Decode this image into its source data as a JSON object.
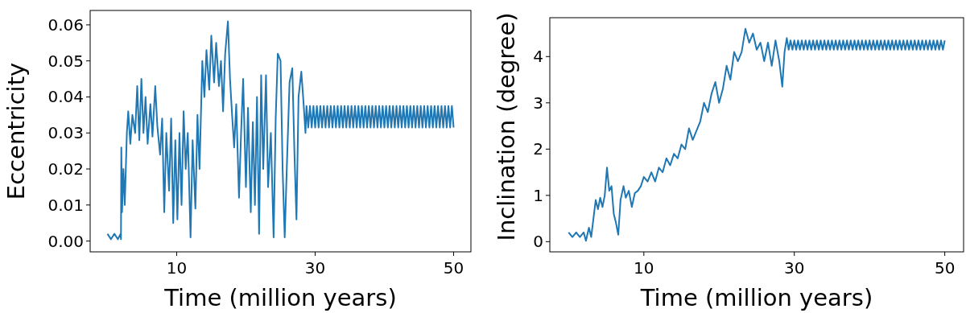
{
  "chart_data": [
    {
      "type": "line",
      "xlabel": "Time (million years)",
      "ylabel": "Eccentricity",
      "xlim": [
        -2.5,
        52.5
      ],
      "xticks": [
        10,
        30,
        50
      ],
      "ylim": [
        -0.003,
        0.064
      ],
      "yticks": [
        {
          "value": 0,
          "label": "0.00"
        },
        {
          "value": 0.01,
          "label": "0.01"
        },
        {
          "value": 0.02,
          "label": "0.02"
        },
        {
          "value": 0.03,
          "label": "0.03"
        },
        {
          "value": 0.04,
          "label": "0.04"
        },
        {
          "value": 0.05,
          "label": "0.05"
        },
        {
          "value": 0.06,
          "label": "0.06"
        }
      ],
      "color": "#1f77b4",
      "x": [
        0,
        0.5,
        1,
        1.5,
        1.9,
        1.95,
        2.0,
        2.1,
        2.3,
        2.5,
        2.8,
        3.0,
        3.3,
        3.6,
        4.0,
        4.3,
        4.6,
        4.9,
        5.2,
        5.5,
        5.8,
        6.2,
        6.5,
        6.9,
        7.2,
        7.6,
        7.9,
        8.2,
        8.5,
        8.9,
        9.2,
        9.5,
        9.8,
        10.1,
        10.4,
        10.7,
        11.0,
        11.3,
        11.6,
        12.0,
        12.3,
        12.7,
        13.0,
        13.3,
        13.7,
        14.0,
        14.3,
        14.7,
        15.0,
        15.4,
        15.7,
        16.1,
        16.4,
        16.7,
        17.0,
        17.4,
        17.7,
        18.0,
        18.3,
        18.6,
        19.0,
        19.3,
        19.6,
        20.0,
        20.3,
        20.7,
        21.0,
        21.3,
        21.6,
        21.9,
        22.2,
        22.5,
        22.9,
        23.2,
        23.6,
        24.0,
        24.3,
        24.6,
        25.0,
        25.3,
        25.6,
        25.9,
        26.3,
        26.7,
        27.0,
        27.3,
        27.6,
        28.0,
        28.3,
        28.6,
        28.75,
        29,
        29.25,
        29.5,
        29.75,
        30,
        30.25,
        30.5,
        30.75,
        31,
        31.25,
        31.5,
        31.75,
        32,
        32.25,
        32.5,
        32.75,
        33,
        33.25,
        33.5,
        33.75,
        34,
        34.25,
        34.5,
        34.75,
        35,
        35.25,
        35.5,
        35.75,
        36,
        36.25,
        36.5,
        36.75,
        37,
        37.25,
        37.5,
        37.75,
        38,
        38.25,
        38.5,
        38.75,
        39,
        39.25,
        39.5,
        39.75,
        40,
        40.25,
        40.5,
        40.75,
        41,
        41.25,
        41.5,
        41.75,
        42,
        42.25,
        42.5,
        42.75,
        43,
        43.25,
        43.5,
        43.75,
        44,
        44.25,
        44.5,
        44.75,
        45,
        45.25,
        45.5,
        45.75,
        46,
        46.25,
        46.5,
        46.75,
        47,
        47.25,
        47.5,
        47.75,
        48,
        48.25,
        48.5,
        48.75,
        49,
        49.25,
        49.5,
        49.75,
        50
      ],
      "values": [
        0.002,
        0.0005,
        0.002,
        0.0005,
        0.002,
        0.0005,
        0.026,
        0.008,
        0.02,
        0.01,
        0.03,
        0.036,
        0.027,
        0.035,
        0.03,
        0.043,
        0.028,
        0.045,
        0.03,
        0.04,
        0.027,
        0.038,
        0.029,
        0.043,
        0.032,
        0.024,
        0.034,
        0.008,
        0.03,
        0.014,
        0.034,
        0.005,
        0.028,
        0.006,
        0.03,
        0.01,
        0.036,
        0.02,
        0.03,
        0.001,
        0.028,
        0.009,
        0.035,
        0.02,
        0.05,
        0.04,
        0.053,
        0.042,
        0.057,
        0.044,
        0.055,
        0.043,
        0.05,
        0.036,
        0.052,
        0.061,
        0.045,
        0.035,
        0.026,
        0.038,
        0.012,
        0.03,
        0.045,
        0.015,
        0.037,
        0.008,
        0.033,
        0.01,
        0.04,
        0.002,
        0.046,
        0.02,
        0.046,
        0.015,
        0.03,
        0.001,
        0.034,
        0.052,
        0.05,
        0.02,
        0.001,
        0.02,
        0.044,
        0.048,
        0.025,
        0.006,
        0.04,
        0.047,
        0.039,
        0.03,
        0.0375,
        0.0315,
        0.0375,
        0.0315,
        0.0375,
        0.0315,
        0.0375,
        0.0315,
        0.0375,
        0.0315,
        0.0375,
        0.0315,
        0.0375,
        0.0315,
        0.0375,
        0.0315,
        0.0375,
        0.0315,
        0.0375,
        0.0315,
        0.0375,
        0.0315,
        0.0375,
        0.0315,
        0.0375,
        0.0315,
        0.0375,
        0.0315,
        0.0375,
        0.0315,
        0.0375,
        0.0315,
        0.0375,
        0.0315,
        0.0375,
        0.0315,
        0.0375,
        0.0315,
        0.0375,
        0.0315,
        0.0375,
        0.0315,
        0.0375,
        0.0315,
        0.0375,
        0.0315,
        0.0375,
        0.0315,
        0.0375,
        0.0315,
        0.0375,
        0.0315,
        0.0375,
        0.0315,
        0.0375,
        0.0315,
        0.0375,
        0.0315,
        0.0375,
        0.0315,
        0.0375,
        0.0315,
        0.0375,
        0.0315,
        0.0375,
        0.0315,
        0.0375,
        0.0315,
        0.0375,
        0.0315,
        0.0375,
        0.0315,
        0.0375,
        0.0315,
        0.0375,
        0.0315,
        0.0375,
        0.0315,
        0.0375,
        0.0315,
        0.0375,
        0.0315,
        0.0375,
        0.0315,
        0.0375,
        0.0315
      ]
    },
    {
      "type": "line",
      "xlabel": "Time (million years)",
      "ylabel": "Inclination (degree)",
      "xlim": [
        -2.5,
        52.5
      ],
      "xticks": [
        10,
        30,
        50
      ],
      "ylim": [
        -0.22,
        4.84
      ],
      "yticks": [
        0,
        1,
        2,
        3,
        4
      ],
      "color": "#1f77b4",
      "x": [
        0,
        0.5,
        1,
        1.5,
        2.0,
        2.3,
        2.7,
        3.0,
        3.3,
        3.6,
        3.9,
        4.2,
        4.5,
        4.8,
        5.1,
        5.4,
        5.7,
        6.0,
        6.3,
        6.6,
        6.9,
        7.3,
        7.6,
        8.0,
        8.4,
        8.8,
        9.2,
        9.6,
        10,
        10.5,
        11,
        11.5,
        12,
        12.5,
        13,
        13.5,
        14,
        14.5,
        15,
        15.5,
        16,
        16.5,
        17,
        17.5,
        18,
        18.5,
        19,
        19.5,
        20,
        20.5,
        21,
        21.5,
        22,
        22.5,
        23,
        23.5,
        24,
        24.5,
        25,
        25.5,
        26,
        26.5,
        27,
        27.5,
        28,
        28.4,
        28.7,
        29,
        29.25,
        29.5,
        29.75,
        30,
        30.25,
        30.5,
        30.75,
        31,
        31.25,
        31.5,
        31.75,
        32,
        32.25,
        32.5,
        32.75,
        33,
        33.25,
        33.5,
        33.75,
        34,
        34.25,
        34.5,
        34.75,
        35,
        35.25,
        35.5,
        35.75,
        36,
        36.25,
        36.5,
        36.75,
        37,
        37.25,
        37.5,
        37.75,
        38,
        38.25,
        38.5,
        38.75,
        39,
        39.25,
        39.5,
        39.75,
        40,
        40.25,
        40.5,
        40.75,
        41,
        41.25,
        41.5,
        41.75,
        42,
        42.25,
        42.5,
        42.75,
        43,
        43.25,
        43.5,
        43.75,
        44,
        44.25,
        44.5,
        44.75,
        45,
        45.25,
        45.5,
        45.75,
        46,
        46.25,
        46.5,
        46.75,
        47,
        47.25,
        47.5,
        47.75,
        48,
        48.25,
        48.5,
        48.75,
        49,
        49.25,
        49.5,
        49.75,
        50
      ],
      "values": [
        0.2,
        0.1,
        0.2,
        0.1,
        0.2,
        0.02,
        0.3,
        0.1,
        0.5,
        0.9,
        0.7,
        0.95,
        0.75,
        1.0,
        1.6,
        1.1,
        1.2,
        0.6,
        0.4,
        0.15,
        0.9,
        1.2,
        0.95,
        1.1,
        0.75,
        1.05,
        1.1,
        1.2,
        1.4,
        1.3,
        1.5,
        1.3,
        1.6,
        1.5,
        1.8,
        1.65,
        1.9,
        1.8,
        2.1,
        2.0,
        2.45,
        2.2,
        2.4,
        2.6,
        3.0,
        2.8,
        3.2,
        3.45,
        3.0,
        3.3,
        3.8,
        3.5,
        4.1,
        3.9,
        4.1,
        4.6,
        4.3,
        4.5,
        4.15,
        4.3,
        3.9,
        4.3,
        3.8,
        4.35,
        3.9,
        3.35,
        4.1,
        4.4,
        4.15,
        4.35,
        4.15,
        4.35,
        4.15,
        4.35,
        4.15,
        4.35,
        4.15,
        4.35,
        4.15,
        4.35,
        4.15,
        4.35,
        4.15,
        4.35,
        4.15,
        4.35,
        4.15,
        4.35,
        4.15,
        4.35,
        4.15,
        4.35,
        4.15,
        4.35,
        4.15,
        4.35,
        4.15,
        4.35,
        4.15,
        4.35,
        4.15,
        4.35,
        4.15,
        4.35,
        4.15,
        4.35,
        4.15,
        4.35,
        4.15,
        4.35,
        4.15,
        4.35,
        4.15,
        4.35,
        4.15,
        4.35,
        4.15,
        4.35,
        4.15,
        4.35,
        4.15,
        4.35,
        4.15,
        4.35,
        4.15,
        4.35,
        4.15,
        4.35,
        4.15,
        4.35,
        4.15,
        4.35,
        4.15,
        4.35,
        4.15,
        4.35,
        4.15,
        4.35,
        4.15,
        4.35,
        4.15,
        4.35,
        4.15,
        4.35,
        4.15,
        4.35,
        4.15,
        4.35,
        4.15,
        4.35,
        4.15,
        4.35
      ]
    }
  ]
}
